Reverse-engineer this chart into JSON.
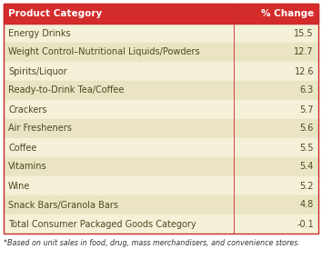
{
  "header": [
    "Product Category",
    "% Change"
  ],
  "rows": [
    [
      "Energy Drinks",
      "15.5"
    ],
    [
      "Weight Control–Nutritional Liquids/Powders",
      "12.7"
    ],
    [
      "Spirits/Liquor",
      "12.6"
    ],
    [
      "Ready-to-Drink Tea/Coffee",
      "6.3"
    ],
    [
      "Crackers",
      "5.7"
    ],
    [
      "Air Fresheners",
      "5.6"
    ],
    [
      "Coffee",
      "5.5"
    ],
    [
      "Vitamins",
      "5.4"
    ],
    [
      "Wine",
      "5.2"
    ],
    [
      "Snack Bars/Granola Bars",
      "4.8"
    ],
    [
      "Total Consumer Packaged Goods Category",
      "-0.1"
    ]
  ],
  "footnote": "*Based on unit sales in food, drug, mass merchandisers, and convenience stores.",
  "header_bg": "#d42b2b",
  "header_text": "#ffffff",
  "odd_row_bg": "#f5f0d8",
  "even_row_bg": "#eae4c4",
  "row_text_color": "#4a4a20",
  "border_color": "#cc2929",
  "footnote_color": "#333333",
  "header_font_size": 7.5,
  "row_font_size": 7.0,
  "footnote_font_size": 5.8,
  "fig_width": 3.54,
  "fig_height": 2.96,
  "dpi": 100
}
